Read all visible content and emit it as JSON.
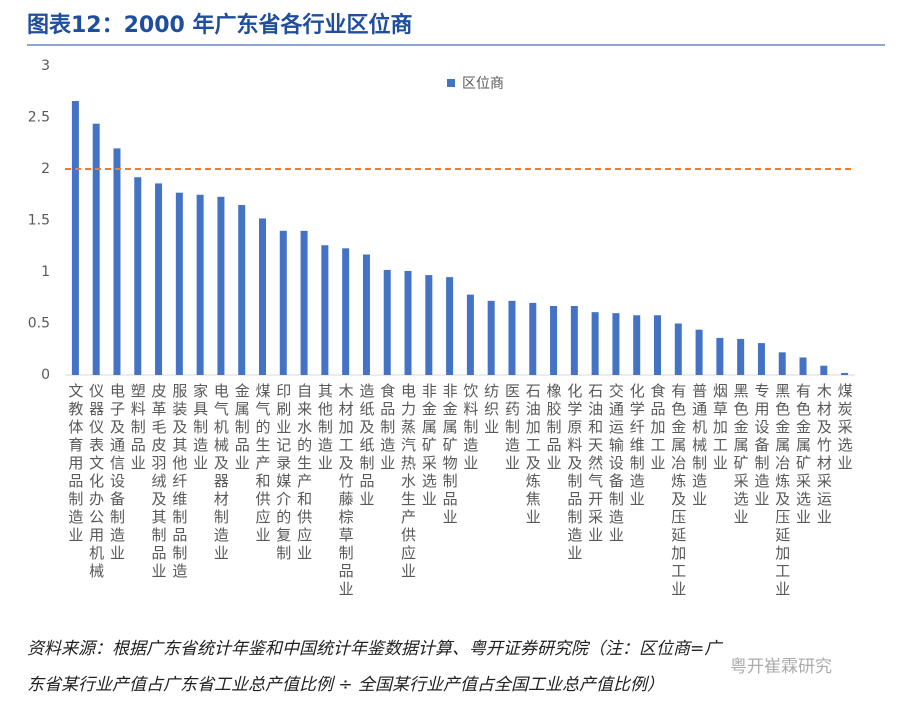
{
  "chart_data": {
    "type": "bar",
    "title": "图表12：2000 年广东省各行业区位商",
    "categories": [
      "文教体育用品制造业",
      "仪器仪表文化办公用机械",
      "电子及通信设备制造业",
      "塑料制品业",
      "皮革毛皮羽绒及其制品业",
      "服装及其他纤维制品制造",
      "家具制造业",
      "电气机械及器材制造业",
      "金属制品业",
      "煤气的生产和供应业",
      "印刷业记录媒介的复制",
      "自来水的生产和供应业",
      "其他制造业",
      "木材加工及竹藤棕草制品业",
      "造纸及纸制品业",
      "食品制造业",
      "电力蒸汽热水生产供应业",
      "非金属矿采选业",
      "非金属矿物制品业",
      "饮料制造业",
      "纺织业",
      "医药制造业",
      "石油加工及炼焦业",
      "橡胶制品业",
      "化学原料及制品制造业",
      "石油和天然气开采业",
      "交通运输设备制造业",
      "化学纤维制造业",
      "食品加工业",
      "有色金属冶炼及压延加工业",
      "普通机械制造业",
      "烟草加工业",
      "黑色金属矿采选业",
      "专用设备制造业",
      "黑色金属冶炼及压延加工业",
      "有色金属矿采选业",
      "木材及竹材采运业",
      "煤炭采选业"
    ],
    "series": [
      {
        "name": "区位商",
        "color": "#4472c4",
        "values": [
          2.66,
          2.44,
          2.2,
          1.92,
          1.86,
          1.77,
          1.75,
          1.73,
          1.65,
          1.52,
          1.4,
          1.4,
          1.26,
          1.23,
          1.17,
          1.02,
          1.01,
          0.97,
          0.95,
          0.78,
          0.72,
          0.72,
          0.7,
          0.67,
          0.67,
          0.61,
          0.6,
          0.58,
          0.58,
          0.5,
          0.44,
          0.36,
          0.35,
          0.31,
          0.22,
          0.17,
          0.09,
          0.02
        ]
      }
    ],
    "ylim": [
      0,
      3
    ],
    "yticks": [
      0,
      0.5,
      1,
      1.5,
      2,
      2.5,
      3
    ],
    "reference_line": {
      "value": 2,
      "color": "#ed7d31"
    },
    "legend": "top",
    "footer": [
      "资料来源：根据广东省统计年鉴和中国统计年鉴数据计算、粤开证券研究院（注：区位商=广",
      "东省某行业产值占广东省工业总产值比例 ÷ 全国某行业产值占全国工业总产值比例）"
    ],
    "watermark": "粤开崔霖研究"
  }
}
